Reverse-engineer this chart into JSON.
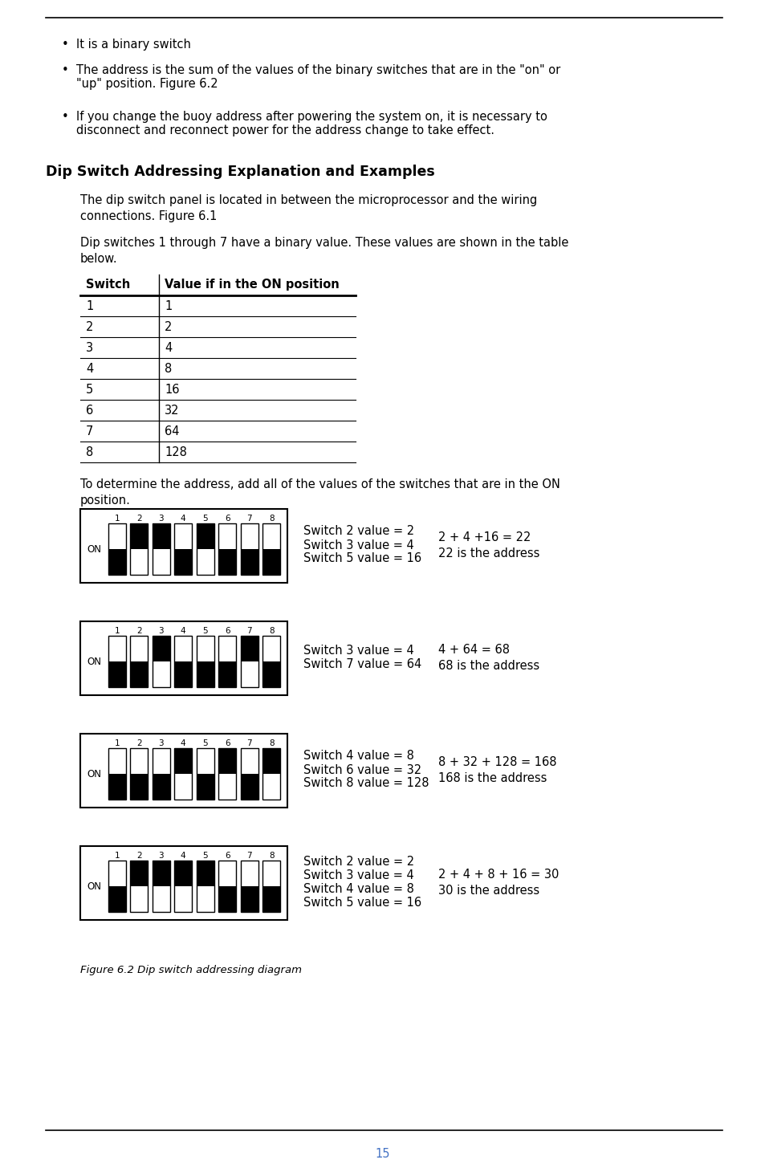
{
  "bg_color": "#ffffff",
  "text_color": "#000000",
  "bullet_points": [
    "It is a binary switch",
    "The address is the sum of the values of the binary switches that are in the \"on\" or\n\"up\" position. Figure 6.2",
    "If you change the buoy address after powering the system on, it is necessary to\ndisconnect and reconnect power for the address change to take effect."
  ],
  "section_title": "Dip Switch Addressing Explanation and Examples",
  "para1": "The dip switch panel is located in between the microprocessor and the wiring\nconnections. Figure 6.1",
  "para2": "Dip switches 1 through 7 have a binary value. These values are shown in the table\nbelow.",
  "table_col1_header": "Switch",
  "table_col2_header": "Value if in the ON position",
  "table_rows": [
    [
      "1",
      "1"
    ],
    [
      "2",
      "2"
    ],
    [
      "3",
      "4"
    ],
    [
      "4",
      "8"
    ],
    [
      "5",
      "16"
    ],
    [
      "6",
      "32"
    ],
    [
      "7",
      "64"
    ],
    [
      "8",
      "128"
    ]
  ],
  "para3": "To determine the address, add all of the values of the switches that are in the ON\nposition.",
  "examples": [
    {
      "on_switches": [
        2,
        3,
        5
      ],
      "labels": [
        "Switch 2 value = 2",
        "Switch 3 value = 4",
        "Switch 5 value = 16"
      ],
      "equation": "2 + 4 +16 = 22",
      "result": "22 is the address"
    },
    {
      "on_switches": [
        3,
        7
      ],
      "labels": [
        "Switch 3 value = 4",
        "Switch 7 value = 64"
      ],
      "equation": "4 + 64 = 68",
      "result": "68 is the address"
    },
    {
      "on_switches": [
        4,
        6,
        8
      ],
      "labels": [
        "Switch 4 value = 8",
        "Switch 6 value = 32",
        "Switch 8 value = 128"
      ],
      "equation": "8 + 32 + 128 = 168",
      "result": "168 is the address"
    },
    {
      "on_switches": [
        2,
        3,
        4,
        5
      ],
      "labels": [
        "Switch 2 value = 2",
        "Switch 3 value = 4",
        "Switch 4 value = 8",
        "Switch 5 value = 16"
      ],
      "equation": "2 + 4 + 8 + 16 = 30",
      "result": "30 is the address"
    }
  ],
  "figure_caption": "Figure 6.2 Dip switch addressing diagram",
  "page_number": "15",
  "page_color": "#4472C4"
}
